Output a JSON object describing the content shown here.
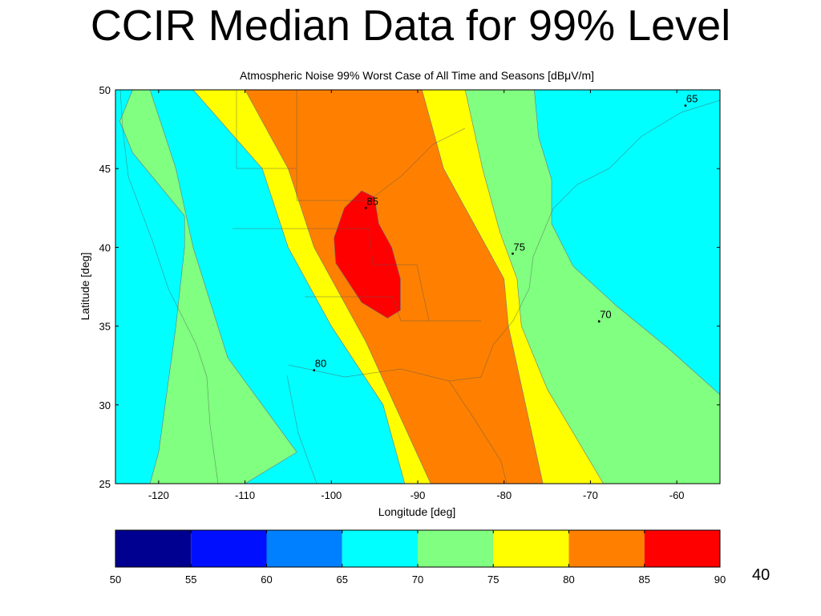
{
  "slide": {
    "title": "CCIR Median Data for 99% Level",
    "page_number": "40"
  },
  "chart_data": {
    "type": "heatmap",
    "subtype": "filled-contour-map",
    "title": "Atmospheric Noise 99% Worst Case of All Time and Seasons [dBμV/m]",
    "xlabel": "Longitude [deg]",
    "ylabel": "Latitude [deg]",
    "xlim": [
      -125,
      -55
    ],
    "ylim": [
      25,
      50
    ],
    "xticks": [
      -120,
      -110,
      -100,
      -90,
      -80,
      -70,
      -60
    ],
    "yticks": [
      25,
      30,
      35,
      40,
      45,
      50
    ],
    "grid": false,
    "background_level_color": "#00ffff",
    "bands": [
      {
        "min": 65,
        "max": 70,
        "color": "#00ffff",
        "outline": [
          [
            -125,
            50
          ],
          [
            -55,
            50
          ],
          [
            -55,
            25
          ],
          [
            -125,
            25
          ]
        ]
      },
      {
        "min": 70,
        "max": 75,
        "color": "#80ff80",
        "outline": [
          [
            -122,
            50
          ],
          [
            -109.5,
            50
          ],
          [
            -105,
            45
          ],
          [
            -104,
            40
          ],
          [
            -98,
            34
          ],
          [
            -90,
            29
          ],
          [
            -86,
            25
          ],
          [
            -54.5,
            25
          ],
          [
            -54.5,
            30.4
          ],
          [
            -61,
            33.6
          ],
          [
            -67,
            36.3
          ],
          [
            -72,
            38.8
          ],
          [
            -74.5,
            41.5
          ],
          [
            -74.5,
            44.3
          ],
          [
            -76,
            47
          ],
          [
            -76.5,
            50
          ],
          [
            -97,
            50
          ],
          [
            -110,
            50
          ],
          [
            -123,
            50
          ],
          [
            -124.5,
            48
          ],
          [
            -123,
            46
          ],
          [
            -117,
            42
          ],
          [
            -117,
            40
          ],
          [
            -118,
            35
          ],
          [
            -120,
            27
          ],
          [
            -121,
            25
          ],
          [
            -110,
            25
          ],
          [
            -104,
            27
          ],
          [
            -112,
            33
          ],
          [
            -116,
            40
          ],
          [
            -118,
            45
          ],
          [
            -121,
            50
          ]
        ]
      },
      {
        "min": 75,
        "max": 80,
        "color": "#ffff00",
        "outline": [
          [
            -116,
            50
          ],
          [
            -108,
            45
          ],
          [
            -105,
            40
          ],
          [
            -100,
            35
          ],
          [
            -94,
            30
          ],
          [
            -91.5,
            25
          ],
          [
            -68.5,
            25
          ],
          [
            -75,
            31
          ],
          [
            -78,
            35
          ],
          [
            -78.5,
            38
          ],
          [
            -80.5,
            41
          ],
          [
            -82.5,
            45
          ],
          [
            -84.5,
            50
          ],
          [
            -95,
            50
          ],
          [
            -105,
            50
          ],
          [
            -116,
            50
          ]
        ]
      },
      {
        "min": 80,
        "max": 85,
        "color": "#ff8000",
        "outline": [
          [
            -110,
            50
          ],
          [
            -105,
            45
          ],
          [
            -102,
            40
          ],
          [
            -96,
            34
          ],
          [
            -88.5,
            25
          ],
          [
            -75.5,
            25
          ],
          [
            -77.5,
            30
          ],
          [
            -79.5,
            35
          ],
          [
            -80,
            38
          ],
          [
            -83,
            41
          ],
          [
            -87,
            45
          ],
          [
            -89.5,
            50
          ],
          [
            -100,
            50
          ],
          [
            -110,
            50
          ]
        ]
      },
      {
        "min": 85,
        "max": 90,
        "color": "#ff0000",
        "outline": [
          [
            -99.7,
            40.6
          ],
          [
            -98.5,
            42.5
          ],
          [
            -96.5,
            43.6
          ],
          [
            -95,
            43.2
          ],
          [
            -94.5,
            41.5
          ],
          [
            -93,
            40
          ],
          [
            -92,
            38
          ],
          [
            -92,
            36
          ],
          [
            -93.5,
            35.5
          ],
          [
            -96.5,
            36.5
          ],
          [
            -99.5,
            39
          ]
        ]
      }
    ],
    "contour_labels": [
      {
        "text": "65",
        "lon": -59,
        "lat": 49,
        "level": 65
      },
      {
        "text": "85",
        "lon": -96,
        "lat": 42.5,
        "level": 85
      },
      {
        "text": "75",
        "lon": -79,
        "lat": 39.6,
        "level": 75
      },
      {
        "text": "70",
        "lon": -69,
        "lat": 35.3,
        "level": 70
      },
      {
        "text": "80",
        "lon": -102,
        "lat": 32.2,
        "level": 80
      }
    ],
    "colorbar": {
      "orientation": "horizontal",
      "ticks": [
        50,
        55,
        60,
        65,
        70,
        75,
        80,
        85,
        90
      ],
      "segments": [
        {
          "min": 50,
          "max": 55,
          "color": "#000090"
        },
        {
          "min": 55,
          "max": 60,
          "color": "#0010ff"
        },
        {
          "min": 60,
          "max": 65,
          "color": "#0080ff"
        },
        {
          "min": 65,
          "max": 70,
          "color": "#00ffff"
        },
        {
          "min": 70,
          "max": 75,
          "color": "#80ff80"
        },
        {
          "min": 75,
          "max": 80,
          "color": "#ffff00"
        },
        {
          "min": 80,
          "max": 85,
          "color": "#ff8000"
        },
        {
          "min": 85,
          "max": 90,
          "color": "#ff0000"
        }
      ]
    }
  }
}
